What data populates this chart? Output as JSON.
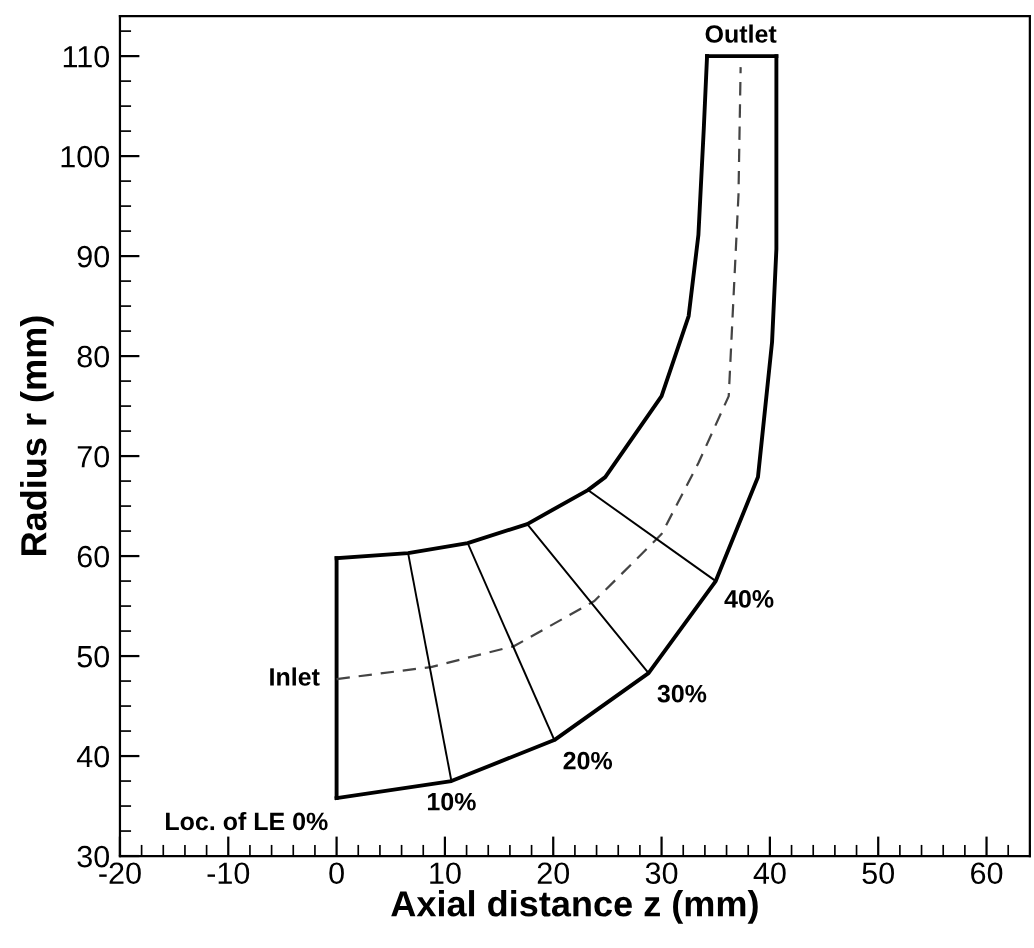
{
  "chart_data": {
    "type": "line",
    "xlabel": "Axial distance z (mm)",
    "ylabel": "Radius r (mm)",
    "xlim": [
      -20,
      64
    ],
    "ylim": [
      30,
      114
    ],
    "xticks": [
      -20,
      -10,
      0,
      10,
      20,
      30,
      40,
      50,
      60
    ],
    "yticks": [
      30,
      40,
      50,
      60,
      70,
      80,
      90,
      100,
      110
    ],
    "grid": false,
    "legend": false,
    "marker": "none",
    "series": [
      {
        "color": "#000000",
        "line_style": "solid",
        "x": [
          0,
          0
        ],
        "values": [
          35.8,
          59.8
        ]
      },
      {
        "color": "#000000",
        "line_style": "solid",
        "x": [
          0,
          6.6,
          12.1,
          17.6,
          23.2,
          24.8,
          30,
          32.5,
          33.4,
          33.9,
          34.2
        ],
        "values": [
          59.8,
          60.3,
          61.3,
          63.2,
          66.6,
          67.9,
          76,
          84,
          92.1,
          102.8,
          110
        ]
      },
      {
        "color": "#000000",
        "line_style": "solid",
        "x": [
          34.2,
          40.6
        ],
        "values": [
          110,
          110
        ]
      },
      {
        "color": "#000000",
        "line_style": "solid",
        "x": [
          0,
          10.6,
          20.1,
          28.8,
          35,
          38.9,
          40.2,
          40.6,
          40.6
        ],
        "values": [
          35.8,
          37.5,
          41.6,
          48.3,
          57.5,
          67.9,
          81.4,
          90.7,
          110
        ]
      },
      {
        "color": "#444444",
        "line_style": "dashed",
        "x": [
          0,
          8.7,
          16.4,
          23.8,
          30,
          33.4,
          36.2,
          37.1,
          37.3
        ],
        "values": [
          47.7,
          48.9,
          51,
          55.5,
          62.2,
          69.3,
          76,
          96.1,
          108.9
        ]
      },
      {
        "color": "#000000",
        "line_style": "solid",
        "x": [
          6.6,
          10.6
        ],
        "values": [
          60.3,
          37.5
        ]
      },
      {
        "color": "#000000",
        "line_style": "solid",
        "x": [
          12.1,
          20.1
        ],
        "values": [
          61.3,
          41.6
        ]
      },
      {
        "color": "#000000",
        "line_style": "solid",
        "x": [
          17.6,
          28.8
        ],
        "values": [
          63.2,
          48.3
        ]
      },
      {
        "color": "#000000",
        "line_style": "solid",
        "x": [
          23.2,
          35
        ],
        "values": [
          66.6,
          57.5
        ]
      }
    ],
    "annotations": [
      {
        "text": "Outlet",
        "x": 37.3,
        "y": 110
      },
      {
        "text": "Inlet",
        "x": 0,
        "y": 47.7
      },
      {
        "text": "Loc. of LE 0%",
        "x": 0,
        "y": 35.8
      },
      {
        "text": "10%",
        "x": 10.6,
        "y": 37.5
      },
      {
        "text": "20%",
        "x": 20.1,
        "y": 41.6
      },
      {
        "text": "30%",
        "x": 28.8,
        "y": 48.3
      },
      {
        "text": "40%",
        "x": 35,
        "y": 57.5
      }
    ]
  }
}
